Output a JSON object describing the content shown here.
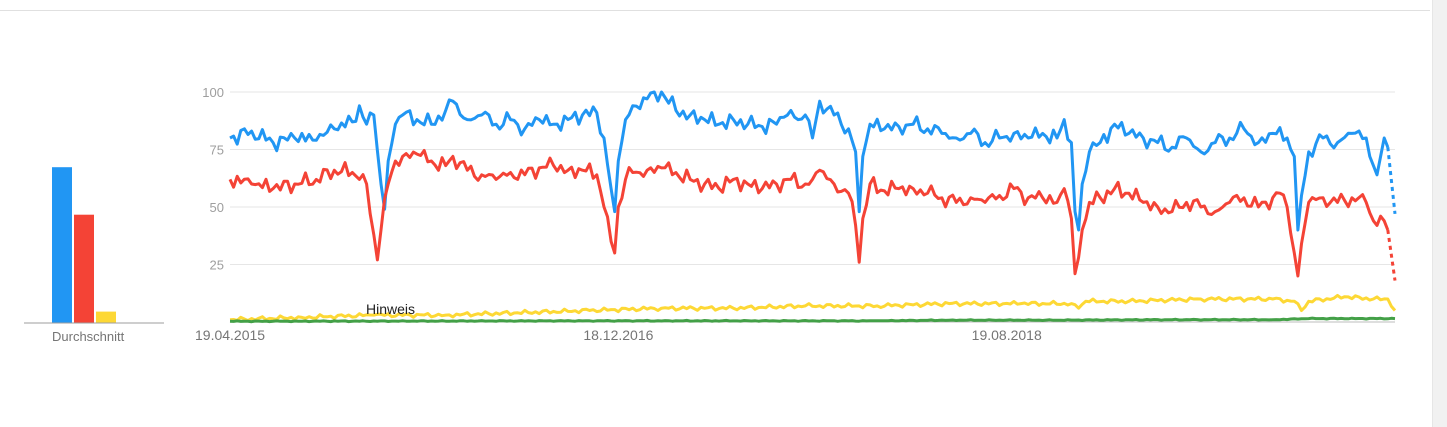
{
  "average_panel": {
    "caption": "Durchschnitt",
    "bars": [
      {
        "color": "#2196f3",
        "value": 82
      },
      {
        "color": "#f44336",
        "value": 57
      },
      {
        "color": "#fdd835",
        "value": 6
      }
    ]
  },
  "annotation": "Hinweis",
  "chart_data": {
    "type": "line",
    "ylim": [
      0,
      100
    ],
    "yticks": [
      25,
      50,
      75,
      100
    ],
    "grid": true,
    "x_start": "19.04.2015",
    "x_end": "18.08.2020",
    "xticks": [
      "19.04.2015",
      "18.12.2016",
      "19.08.2018"
    ],
    "series": [
      {
        "color": "#2196f3",
        "anchors": [
          [
            0,
            80
          ],
          [
            6,
            83
          ],
          [
            12,
            78
          ],
          [
            18,
            80
          ],
          [
            24,
            79
          ],
          [
            29,
            84
          ],
          [
            34,
            87
          ],
          [
            36,
            94
          ],
          [
            38,
            86
          ],
          [
            40,
            90
          ],
          [
            42,
            60
          ],
          [
            43,
            49
          ],
          [
            44,
            70
          ],
          [
            46,
            86
          ],
          [
            48,
            90
          ],
          [
            52,
            88
          ],
          [
            56,
            86
          ],
          [
            60,
            92
          ],
          [
            62,
            96
          ],
          [
            66,
            88
          ],
          [
            70,
            90
          ],
          [
            74,
            86
          ],
          [
            78,
            88
          ],
          [
            82,
            84
          ],
          [
            86,
            88
          ],
          [
            90,
            86
          ],
          [
            94,
            88
          ],
          [
            98,
            90
          ],
          [
            102,
            91
          ],
          [
            104,
            80
          ],
          [
            106,
            58
          ],
          [
            107,
            48
          ],
          [
            108,
            70
          ],
          [
            110,
            88
          ],
          [
            112,
            94
          ],
          [
            116,
            97
          ],
          [
            120,
            100
          ],
          [
            124,
            92
          ],
          [
            128,
            90
          ],
          [
            132,
            88
          ],
          [
            136,
            86
          ],
          [
            140,
            88
          ],
          [
            144,
            86
          ],
          [
            148,
            85
          ],
          [
            152,
            86
          ],
          [
            154,
            89
          ],
          [
            156,
            92
          ],
          [
            158,
            88
          ],
          [
            160,
            90
          ],
          [
            162,
            80
          ],
          [
            164,
            96
          ],
          [
            168,
            90
          ],
          [
            172,
            84
          ],
          [
            174,
            74
          ],
          [
            175,
            48
          ],
          [
            176,
            72
          ],
          [
            178,
            86
          ],
          [
            182,
            84
          ],
          [
            186,
            85
          ],
          [
            190,
            86
          ],
          [
            194,
            84
          ],
          [
            198,
            82
          ],
          [
            202,
            80
          ],
          [
            206,
            82
          ],
          [
            210,
            78
          ],
          [
            214,
            80
          ],
          [
            218,
            82
          ],
          [
            222,
            80
          ],
          [
            226,
            82
          ],
          [
            230,
            80
          ],
          [
            232,
            88
          ],
          [
            234,
            78
          ],
          [
            235,
            48
          ],
          [
            236,
            40
          ],
          [
            237,
            60
          ],
          [
            239,
            74
          ],
          [
            242,
            78
          ],
          [
            246,
            86
          ],
          [
            250,
            82
          ],
          [
            254,
            80
          ],
          [
            258,
            78
          ],
          [
            262,
            76
          ],
          [
            266,
            80
          ],
          [
            270,
            74
          ],
          [
            274,
            78
          ],
          [
            278,
            80
          ],
          [
            282,
            84
          ],
          [
            286,
            78
          ],
          [
            290,
            82
          ],
          [
            294,
            80
          ],
          [
            296,
            72
          ],
          [
            297,
            40
          ],
          [
            298,
            55
          ],
          [
            300,
            74
          ],
          [
            304,
            80
          ],
          [
            308,
            78
          ],
          [
            312,
            82
          ],
          [
            316,
            80
          ],
          [
            318,
            68
          ],
          [
            319,
            64
          ],
          [
            320,
            72
          ],
          [
            321,
            80
          ],
          [
            322,
            76
          ]
        ],
        "dashed_tail": [
          [
            322,
            76
          ],
          [
            324,
            47
          ]
        ]
      },
      {
        "color": "#f44336",
        "anchors": [
          [
            0,
            62
          ],
          [
            6,
            60
          ],
          [
            12,
            58
          ],
          [
            18,
            60
          ],
          [
            24,
            62
          ],
          [
            29,
            66
          ],
          [
            34,
            65
          ],
          [
            36,
            62
          ],
          [
            38,
            60
          ],
          [
            40,
            38
          ],
          [
            41,
            27
          ],
          [
            42,
            40
          ],
          [
            44,
            60
          ],
          [
            46,
            70
          ],
          [
            48,
            72
          ],
          [
            52,
            73
          ],
          [
            56,
            70
          ],
          [
            60,
            68
          ],
          [
            62,
            72
          ],
          [
            66,
            66
          ],
          [
            70,
            64
          ],
          [
            74,
            62
          ],
          [
            78,
            65
          ],
          [
            82,
            64
          ],
          [
            86,
            67
          ],
          [
            90,
            68
          ],
          [
            94,
            66
          ],
          [
            98,
            66
          ],
          [
            102,
            64
          ],
          [
            104,
            50
          ],
          [
            106,
            35
          ],
          [
            107,
            30
          ],
          [
            108,
            50
          ],
          [
            110,
            62
          ],
          [
            112,
            65
          ],
          [
            116,
            66
          ],
          [
            120,
            67
          ],
          [
            124,
            65
          ],
          [
            128,
            62
          ],
          [
            132,
            60
          ],
          [
            136,
            58
          ],
          [
            140,
            62
          ],
          [
            144,
            60
          ],
          [
            148,
            58
          ],
          [
            152,
            60
          ],
          [
            156,
            62
          ],
          [
            160,
            60
          ],
          [
            162,
            62
          ],
          [
            164,
            66
          ],
          [
            168,
            60
          ],
          [
            172,
            56
          ],
          [
            174,
            42
          ],
          [
            175,
            26
          ],
          [
            176,
            45
          ],
          [
            178,
            60
          ],
          [
            182,
            57
          ],
          [
            186,
            58
          ],
          [
            190,
            58
          ],
          [
            194,
            56
          ],
          [
            198,
            54
          ],
          [
            202,
            52
          ],
          [
            206,
            54
          ],
          [
            210,
            52
          ],
          [
            214,
            55
          ],
          [
            218,
            58
          ],
          [
            222,
            54
          ],
          [
            226,
            54
          ],
          [
            230,
            52
          ],
          [
            232,
            58
          ],
          [
            234,
            45
          ],
          [
            235,
            21
          ],
          [
            236,
            28
          ],
          [
            237,
            40
          ],
          [
            239,
            52
          ],
          [
            242,
            54
          ],
          [
            246,
            58
          ],
          [
            250,
            56
          ],
          [
            254,
            52
          ],
          [
            258,
            50
          ],
          [
            262,
            48
          ],
          [
            266,
            52
          ],
          [
            270,
            50
          ],
          [
            274,
            48
          ],
          [
            278,
            52
          ],
          [
            282,
            54
          ],
          [
            286,
            50
          ],
          [
            290,
            54
          ],
          [
            292,
            56
          ],
          [
            294,
            50
          ],
          [
            296,
            30
          ],
          [
            297,
            20
          ],
          [
            298,
            34
          ],
          [
            300,
            52
          ],
          [
            304,
            54
          ],
          [
            308,
            52
          ],
          [
            312,
            54
          ],
          [
            316,
            52
          ],
          [
            318,
            44
          ],
          [
            319,
            42
          ],
          [
            320,
            46
          ],
          [
            321,
            44
          ],
          [
            322,
            40
          ]
        ],
        "dashed_tail": [
          [
            322,
            40
          ],
          [
            324,
            18
          ]
        ]
      },
      {
        "color": "#fdd835",
        "anchors": [
          [
            0,
            1
          ],
          [
            20,
            2
          ],
          [
            40,
            3
          ],
          [
            60,
            3
          ],
          [
            80,
            4
          ],
          [
            100,
            5
          ],
          [
            120,
            6
          ],
          [
            140,
            6
          ],
          [
            160,
            7
          ],
          [
            180,
            7
          ],
          [
            200,
            8
          ],
          [
            220,
            8
          ],
          [
            234,
            8
          ],
          [
            236,
            6
          ],
          [
            238,
            9
          ],
          [
            250,
            9
          ],
          [
            270,
            10
          ],
          [
            290,
            10
          ],
          [
            296,
            9
          ],
          [
            298,
            5
          ],
          [
            300,
            9
          ],
          [
            310,
            11
          ],
          [
            318,
            10
          ],
          [
            322,
            10
          ],
          [
            324,
            5
          ]
        ],
        "dashed_tail": []
      },
      {
        "color": "#43a047",
        "anchors": [
          [
            0,
            0.3
          ],
          [
            100,
            0.5
          ],
          [
            180,
            0.5
          ],
          [
            200,
            0.8
          ],
          [
            230,
            0.8
          ],
          [
            260,
            1
          ],
          [
            290,
            1
          ],
          [
            300,
            1.5
          ],
          [
            324,
            1.5
          ]
        ],
        "dashed_tail": []
      }
    ]
  }
}
